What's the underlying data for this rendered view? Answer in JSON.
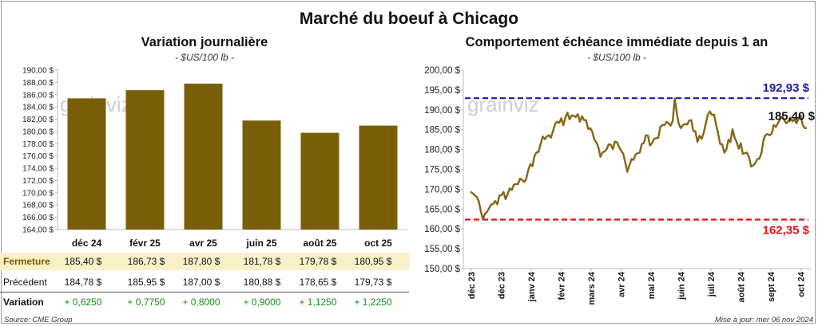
{
  "title": "Marché du boeuf à Chicago",
  "left": {
    "subtitle": "Variation journalière",
    "unit": "- $US/100 lb -",
    "watermark": "grainviz",
    "rows": {
      "close_label": "Fermeture",
      "prev_label": "Précédent",
      "var_label": "Variation",
      "close": [
        "185,40 $",
        "186,73 $",
        "187,80 $",
        "181,78 $",
        "179,78 $",
        "180,95 $"
      ],
      "prev": [
        "184,78 $",
        "185,95 $",
        "187,00 $",
        "180,88 $",
        "178,65 $",
        "179,73 $"
      ],
      "var": [
        "+ 0,6250",
        "+ 0,7750",
        "+ 0,8000",
        "+ 0,9000",
        "+ 1,1250",
        "+ 1,2250"
      ]
    }
  },
  "right": {
    "subtitle": "Comportement échéance immédiate depuis 1 an",
    "unit": "- $US/100 lb -",
    "watermark": "grainviz",
    "high_label": "192,93 $",
    "low_label": "162,35 $",
    "last_label": "185,40 $"
  },
  "footer": {
    "source": "Source: CME Group",
    "updated": "Mise à jour: mer 06 nov 2024"
  },
  "colors": {
    "bar": "#7a5f0a",
    "line": "#826713",
    "high": "#1a1aa8",
    "low": "#e01010",
    "highlight_row": "#f9efc8",
    "positive": "#1a8a1a"
  },
  "chart_data": [
    {
      "type": "bar",
      "title": "Variation journalière",
      "ylabel": "$US/100 lb",
      "categories": [
        "déc 24",
        "févr 25",
        "avr 25",
        "juin 25",
        "août 25",
        "oct 25"
      ],
      "values": [
        185.4,
        186.73,
        187.8,
        181.78,
        179.78,
        180.95
      ],
      "ylim": [
        164,
        190
      ],
      "yticks": [
        "164,00 $",
        "166,00 $",
        "168,00 $",
        "170,00 $",
        "172,00 $",
        "174,00 $",
        "176,00 $",
        "178,00 $",
        "180,00 $",
        "182,00 $",
        "184,00 $",
        "186,00 $",
        "188,00 $",
        "190,00 $"
      ],
      "grid": false
    },
    {
      "type": "line",
      "title": "Comportement échéance immédiate depuis 1 an",
      "ylabel": "$US/100 lb",
      "ylim": [
        150,
        200
      ],
      "yticks": [
        "150,00 $",
        "155,00 $",
        "160,00 $",
        "165,00 $",
        "170,00 $",
        "175,00 $",
        "180,00 $",
        "185,00 $",
        "190,00 $",
        "195,00 $",
        "200,00 $"
      ],
      "xticks": [
        "déc 23",
        "déc 23",
        "janv 24",
        "févr 24",
        "mars 24",
        "avr 24",
        "mai 24",
        "juin 24",
        "juil 24",
        "août 24",
        "sept 24",
        "oct 24"
      ],
      "reference_lines": [
        {
          "label": "192,93 $",
          "value": 192.93,
          "style": "dashed"
        },
        {
          "label": "162,35 $",
          "value": 162.35,
          "style": "dashed"
        }
      ],
      "last_value": 185.4,
      "series_values": [
        169.4,
        169.0,
        168.5,
        168.1,
        167.0,
        164.5,
        162.4,
        163.8,
        164.3,
        165.2,
        166.1,
        166.3,
        167.0,
        166.2,
        168.4,
        168.5,
        169.3,
        167.5,
        168.8,
        170.2,
        169.8,
        171.1,
        171.3,
        171.3,
        172.7,
        172.3,
        171.8,
        172.6,
        174.8,
        176.3,
        175.8,
        178.4,
        179.3,
        179.4,
        181.4,
        183.3,
        182.6,
        183.3,
        183.6,
        183.0,
        184.7,
        186.4,
        187.0,
        186.7,
        187.9,
        186.1,
        188.1,
        189.3,
        187.6,
        188.6,
        188.5,
        188.2,
        188.9,
        187.0,
        188.4,
        187.4,
        187.4,
        185.2,
        185.4,
        184.5,
        182.5,
        181.8,
        180.5,
        178.2,
        179.3,
        179.5,
        180.1,
        181.3,
        181.2,
        180.1,
        182.0,
        181.8,
        180.6,
        179.7,
        179.0,
        176.8,
        174.4,
        176.0,
        177.6,
        177.4,
        178.7,
        179.1,
        179.2,
        181.4,
        181.6,
        183.6,
        183.5,
        181.0,
        181.6,
        182.7,
        182.9,
        182.9,
        185.7,
        186.2,
        186.1,
        187.0,
        186.6,
        186.0,
        187.2,
        192.9,
        189.1,
        186.3,
        185.4,
        186.2,
        186.4,
        186.3,
        187.3,
        187.4,
        184.7,
        184.6,
        181.9,
        183.5,
        182.7,
        184.2,
        186.4,
        188.7,
        189.6,
        188.7,
        188.8,
        186.3,
        184.1,
        181.4,
        181.3,
        179.2,
        180.0,
        182.5,
        181.9,
        185.1,
        183.0,
        181.9,
        180.2,
        181.6,
        178.9,
        179.1,
        179.2,
        178.0,
        175.7,
        176.0,
        176.5,
        177.6,
        177.7,
        179.1,
        182.4,
        183.7,
        183.9,
        183.6,
        184.0,
        186.2,
        185.7,
        186.6,
        187.6,
        188.3,
        187.5,
        186.6,
        187.1,
        188.1,
        187.1,
        187.6,
        186.6,
        187.9,
        188.6,
        186.2,
        185.4,
        185.4
      ]
    }
  ]
}
